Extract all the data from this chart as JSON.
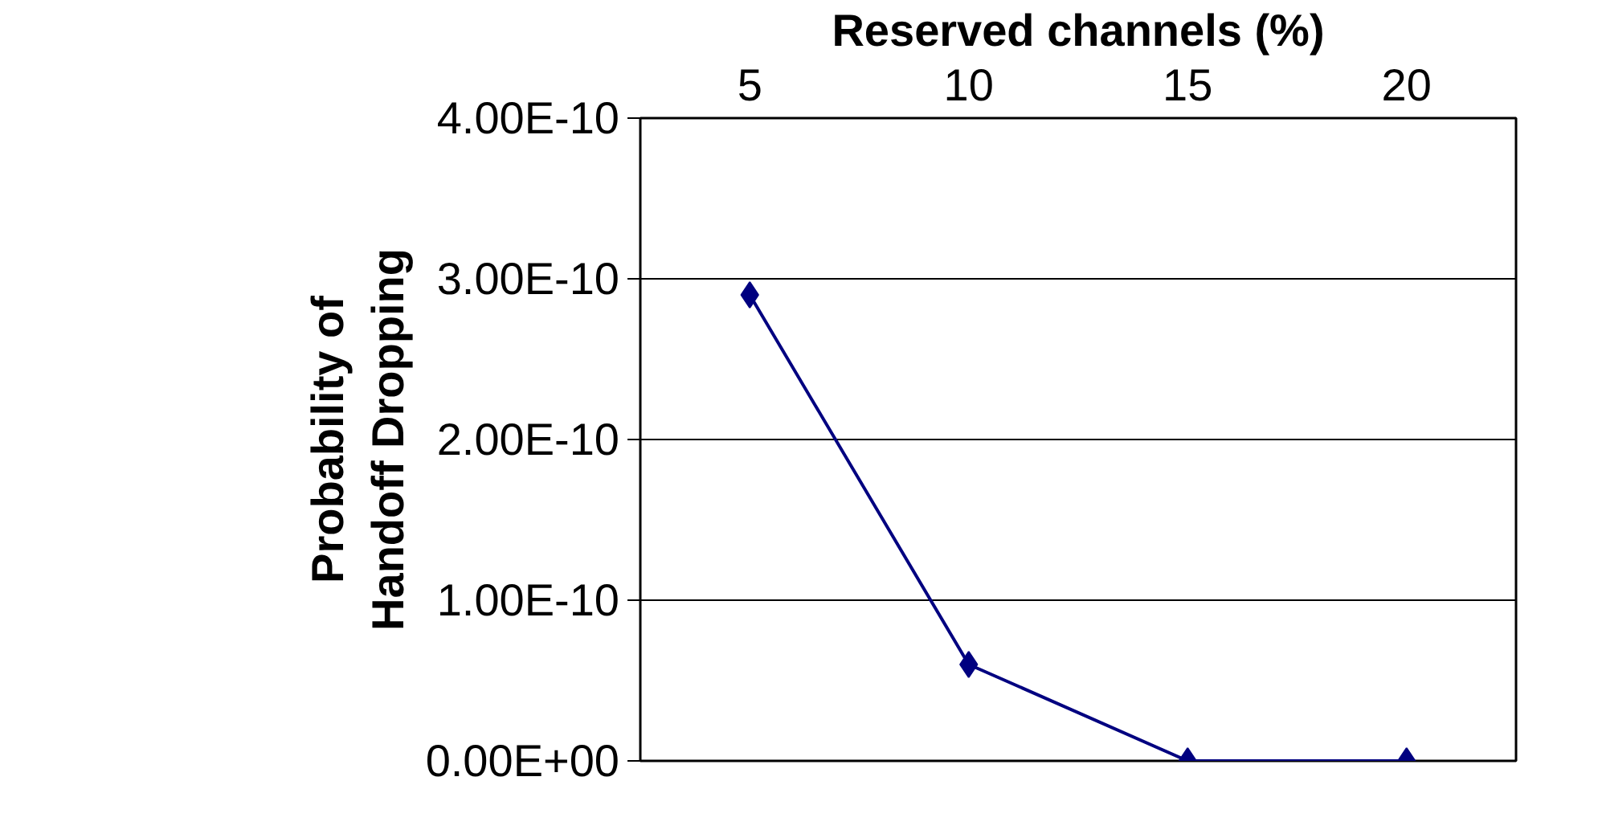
{
  "chart_data": {
    "type": "line",
    "xlabel": "Reserved channels (%)",
    "ylabel": "Probability of\nHandoff Dropping",
    "categories": [
      "5",
      "10",
      "15",
      "20"
    ],
    "series": [
      {
        "color": "#000080",
        "values": [
          2.9e-10,
          6e-11,
          0,
          0
        ]
      }
    ],
    "ylim": [
      0,
      4e-10
    ],
    "yticks": [
      {
        "value": 0,
        "label": "0.00E+00"
      },
      {
        "value": 1e-10,
        "label": "1.00E-10"
      },
      {
        "value": 2e-10,
        "label": "2.00E-10"
      },
      {
        "value": 3e-10,
        "label": "3.00E-10"
      },
      {
        "value": 4e-10,
        "label": "4.00E-10"
      }
    ],
    "grid": "y",
    "marker": "diamond"
  }
}
